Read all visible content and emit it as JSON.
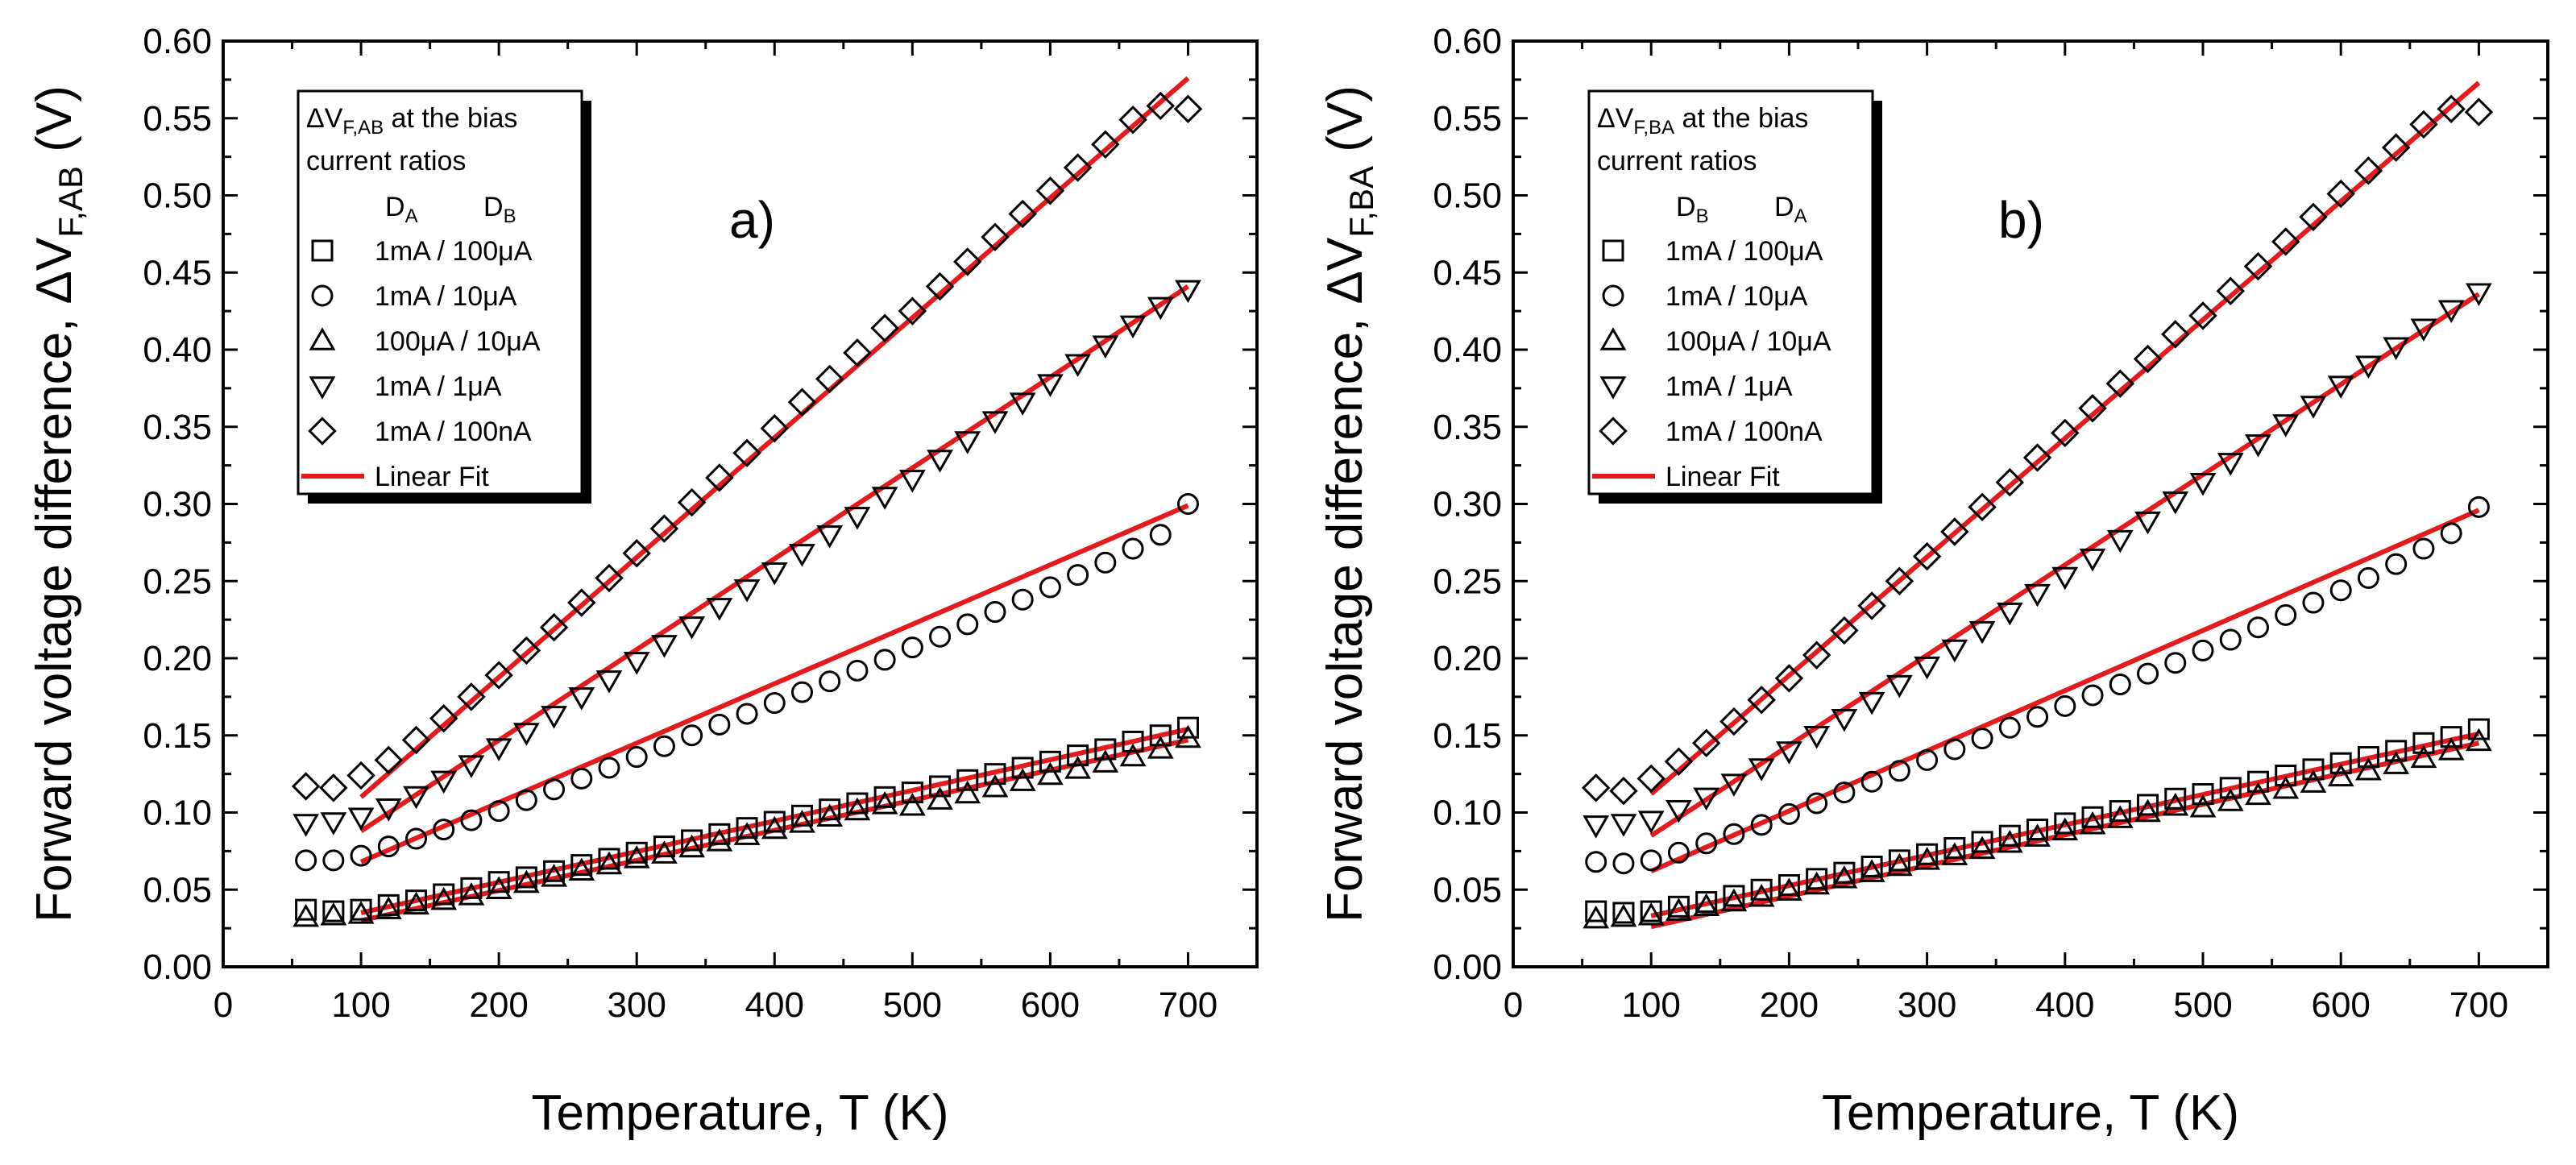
{
  "chart_data": [
    {
      "type": "scatter",
      "panel_label": "a)",
      "title": "",
      "xlabel": "Temperature, T (K)",
      "ylabel": {
        "main": "Forward voltage difference, ΔV",
        "sub": "F,AB",
        "unit": " (V)"
      },
      "xlim": [
        0,
        750
      ],
      "ylim": [
        0,
        0.6
      ],
      "xticks": [
        0,
        100,
        200,
        300,
        400,
        500,
        600,
        700
      ],
      "yticks": [
        "0.00",
        "0.05",
        "0.10",
        "0.15",
        "0.20",
        "0.25",
        "0.30",
        "0.35",
        "0.40",
        "0.45",
        "0.50",
        "0.55",
        "0.60"
      ],
      "grid": false,
      "legend": {
        "position": "top-left",
        "title_main": "ΔV",
        "title_sub": "F,AB",
        "title_rest": " at the bias",
        "title_line2": "current ratios",
        "col1": "D",
        "col1_sub": "A",
        "col2": "D",
        "col2_sub": "B",
        "fit_label": "Linear Fit"
      },
      "x": [
        60,
        80,
        100,
        120,
        140,
        160,
        180,
        200,
        220,
        240,
        260,
        280,
        300,
        320,
        340,
        360,
        380,
        400,
        420,
        440,
        460,
        480,
        500,
        520,
        540,
        560,
        580,
        600,
        620,
        640,
        660,
        680,
        700
      ],
      "series": [
        {
          "name": "1mA / 100μA",
          "marker": "square",
          "values": [
            0.037,
            0.036,
            0.037,
            0.04,
            0.043,
            0.047,
            0.051,
            0.055,
            0.058,
            0.062,
            0.066,
            0.07,
            0.074,
            0.078,
            0.082,
            0.086,
            0.09,
            0.094,
            0.098,
            0.102,
            0.106,
            0.11,
            0.113,
            0.117,
            0.121,
            0.125,
            0.129,
            0.133,
            0.137,
            0.141,
            0.146,
            0.15,
            0.155
          ],
          "fit": [
            0.035,
            0.154
          ]
        },
        {
          "name": "1mA / 10μA",
          "marker": "circle",
          "values": [
            0.069,
            0.069,
            0.072,
            0.078,
            0.083,
            0.089,
            0.095,
            0.101,
            0.108,
            0.115,
            0.122,
            0.129,
            0.136,
            0.143,
            0.15,
            0.157,
            0.164,
            0.171,
            0.178,
            0.185,
            0.192,
            0.199,
            0.207,
            0.214,
            0.222,
            0.23,
            0.238,
            0.246,
            0.254,
            0.262,
            0.271,
            0.28,
            0.3
          ],
          "fit": [
            0.068,
            0.299
          ]
        },
        {
          "name": "100μA / 10μA",
          "marker": "triangle-up",
          "values": [
            0.032,
            0.033,
            0.034,
            0.037,
            0.04,
            0.043,
            0.046,
            0.05,
            0.054,
            0.058,
            0.062,
            0.066,
            0.07,
            0.073,
            0.077,
            0.081,
            0.085,
            0.089,
            0.093,
            0.097,
            0.101,
            0.105,
            0.104,
            0.108,
            0.112,
            0.116,
            0.12,
            0.124,
            0.128,
            0.132,
            0.136,
            0.141,
            0.148
          ],
          "fit": [
            0.03,
            0.147
          ]
        },
        {
          "name": "1mA / 1μA",
          "marker": "triangle-down",
          "values": [
            0.093,
            0.094,
            0.097,
            0.103,
            0.111,
            0.121,
            0.131,
            0.142,
            0.152,
            0.163,
            0.175,
            0.186,
            0.198,
            0.209,
            0.221,
            0.233,
            0.245,
            0.256,
            0.268,
            0.28,
            0.292,
            0.305,
            0.316,
            0.329,
            0.341,
            0.354,
            0.366,
            0.378,
            0.391,
            0.403,
            0.416,
            0.428,
            0.439
          ],
          "fit": [
            0.088,
            0.441
          ]
        },
        {
          "name": "1mA / 100nA",
          "marker": "diamond",
          "values": [
            0.117,
            0.116,
            0.124,
            0.134,
            0.147,
            0.161,
            0.175,
            0.189,
            0.205,
            0.22,
            0.236,
            0.252,
            0.268,
            0.284,
            0.301,
            0.317,
            0.333,
            0.349,
            0.366,
            0.381,
            0.398,
            0.414,
            0.425,
            0.441,
            0.457,
            0.473,
            0.488,
            0.503,
            0.518,
            0.533,
            0.549,
            0.558,
            0.556
          ],
          "fit": [
            0.11,
            0.576
          ]
        }
      ]
    },
    {
      "type": "scatter",
      "panel_label": "b)",
      "title": "",
      "xlabel": "Temperature, T (K)",
      "ylabel": {
        "main": "Forward voltage difference, ΔV",
        "sub": "F,BA",
        "unit": " (V)"
      },
      "xlim": [
        0,
        750
      ],
      "ylim": [
        0,
        0.6
      ],
      "xticks": [
        0,
        100,
        200,
        300,
        400,
        500,
        600,
        700
      ],
      "yticks": [
        "0.00",
        "0.05",
        "0.10",
        "0.15",
        "0.20",
        "0.25",
        "0.30",
        "0.35",
        "0.40",
        "0.45",
        "0.50",
        "0.55",
        "0.60"
      ],
      "grid": false,
      "legend": {
        "position": "top-left",
        "title_main": "ΔV",
        "title_sub": "F,BA",
        "title_rest": " at the bias",
        "title_line2": "current ratios",
        "col1": "D",
        "col1_sub": "B",
        "col2": "D",
        "col2_sub": "A",
        "fit_label": "Linear Fit"
      },
      "x": [
        60,
        80,
        100,
        120,
        140,
        160,
        180,
        200,
        220,
        240,
        260,
        280,
        300,
        320,
        340,
        360,
        380,
        400,
        420,
        440,
        460,
        480,
        500,
        520,
        540,
        560,
        580,
        600,
        620,
        640,
        660,
        680,
        700
      ],
      "series": [
        {
          "name": "1mA / 100μA",
          "marker": "square",
          "values": [
            0.036,
            0.035,
            0.036,
            0.039,
            0.042,
            0.046,
            0.05,
            0.053,
            0.057,
            0.061,
            0.065,
            0.069,
            0.073,
            0.077,
            0.081,
            0.085,
            0.089,
            0.093,
            0.097,
            0.101,
            0.105,
            0.109,
            0.112,
            0.116,
            0.12,
            0.124,
            0.128,
            0.132,
            0.136,
            0.14,
            0.145,
            0.149,
            0.154
          ],
          "fit": [
            0.033,
            0.151
          ]
        },
        {
          "name": "1mA / 10μA",
          "marker": "circle",
          "values": [
            0.068,
            0.067,
            0.069,
            0.074,
            0.08,
            0.086,
            0.092,
            0.099,
            0.106,
            0.113,
            0.12,
            0.127,
            0.134,
            0.141,
            0.148,
            0.155,
            0.162,
            0.169,
            0.176,
            0.183,
            0.19,
            0.197,
            0.205,
            0.212,
            0.22,
            0.228,
            0.236,
            0.244,
            0.252,
            0.261,
            0.271,
            0.281,
            0.298
          ],
          "fit": [
            0.062,
            0.296
          ]
        },
        {
          "name": "100μA / 10μA",
          "marker": "triangle-up",
          "values": [
            0.031,
            0.032,
            0.033,
            0.036,
            0.039,
            0.042,
            0.045,
            0.049,
            0.053,
            0.057,
            0.061,
            0.065,
            0.069,
            0.072,
            0.076,
            0.08,
            0.084,
            0.088,
            0.092,
            0.096,
            0.1,
            0.104,
            0.103,
            0.107,
            0.111,
            0.115,
            0.119,
            0.123,
            0.127,
            0.131,
            0.135,
            0.14,
            0.146
          ],
          "fit": [
            0.026,
            0.145
          ]
        },
        {
          "name": "1mA / 1μA",
          "marker": "triangle-down",
          "values": [
            0.092,
            0.093,
            0.095,
            0.102,
            0.11,
            0.119,
            0.129,
            0.14,
            0.15,
            0.161,
            0.172,
            0.183,
            0.195,
            0.206,
            0.218,
            0.23,
            0.242,
            0.253,
            0.265,
            0.277,
            0.289,
            0.302,
            0.314,
            0.327,
            0.339,
            0.352,
            0.364,
            0.377,
            0.39,
            0.402,
            0.414,
            0.426,
            0.437
          ],
          "fit": [
            0.085,
            0.436
          ]
        },
        {
          "name": "1mA / 100nA",
          "marker": "diamond",
          "values": [
            0.116,
            0.114,
            0.122,
            0.133,
            0.145,
            0.159,
            0.173,
            0.187,
            0.202,
            0.218,
            0.234,
            0.25,
            0.266,
            0.282,
            0.298,
            0.314,
            0.33,
            0.346,
            0.362,
            0.378,
            0.394,
            0.41,
            0.422,
            0.438,
            0.454,
            0.47,
            0.486,
            0.501,
            0.516,
            0.531,
            0.546,
            0.556,
            0.554
          ],
          "fit": [
            0.112,
            0.573
          ]
        }
      ]
    }
  ],
  "colors": {
    "fit_line": "#e41a1c",
    "marker": "#000000",
    "axis": "#000000",
    "legend_shadow": "#000000"
  }
}
